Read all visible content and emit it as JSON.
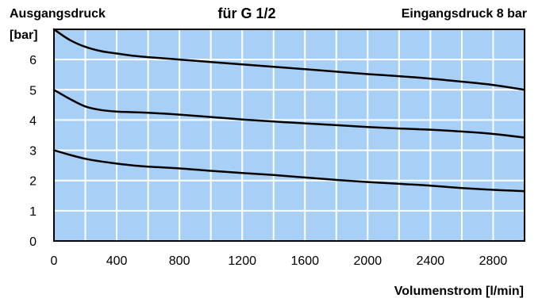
{
  "chart_data": {
    "type": "line",
    "title": "für G 1/2",
    "ylabel_line1": "Ausgangsdruck",
    "ylabel_line2": "[bar]",
    "note": "Eingangsdruck 8 bar",
    "xlabel": "Volumenstrom [l/min]",
    "xlim": [
      0,
      3000
    ],
    "ylim": [
      0,
      7
    ],
    "xticks": [
      0,
      400,
      800,
      1200,
      1600,
      2000,
      2400,
      2800
    ],
    "yticks": [
      0,
      1,
      2,
      3,
      4,
      5,
      6
    ],
    "grid_x_step": 200,
    "grid_y_step": 1,
    "grid": true,
    "plot_background": "#a8cff5",
    "grid_color": "#ffffff",
    "line_color": "#000000",
    "series": [
      {
        "x": [
          0,
          100,
          200,
          300,
          400,
          500,
          600,
          800,
          1000,
          1200,
          1400,
          1600,
          1800,
          2000,
          2200,
          2400,
          2600,
          2800,
          3000
        ],
        "y": [
          7.0,
          6.65,
          6.42,
          6.28,
          6.2,
          6.13,
          6.08,
          6.0,
          5.92,
          5.84,
          5.76,
          5.68,
          5.6,
          5.52,
          5.45,
          5.37,
          5.27,
          5.16,
          5.0
        ]
      },
      {
        "x": [
          0,
          100,
          200,
          300,
          400,
          500,
          600,
          800,
          1000,
          1200,
          1400,
          1600,
          1800,
          2000,
          2200,
          2400,
          2600,
          2800,
          3000
        ],
        "y": [
          5.0,
          4.7,
          4.45,
          4.33,
          4.28,
          4.26,
          4.24,
          4.18,
          4.1,
          4.02,
          3.95,
          3.89,
          3.83,
          3.77,
          3.72,
          3.68,
          3.62,
          3.54,
          3.42
        ]
      },
      {
        "x": [
          0,
          100,
          200,
          300,
          400,
          500,
          600,
          800,
          1000,
          1200,
          1400,
          1600,
          1800,
          2000,
          2200,
          2400,
          2600,
          2800,
          3000
        ],
        "y": [
          3.0,
          2.85,
          2.72,
          2.63,
          2.56,
          2.5,
          2.46,
          2.4,
          2.32,
          2.25,
          2.18,
          2.1,
          2.02,
          1.95,
          1.89,
          1.83,
          1.75,
          1.69,
          1.65
        ]
      }
    ]
  }
}
